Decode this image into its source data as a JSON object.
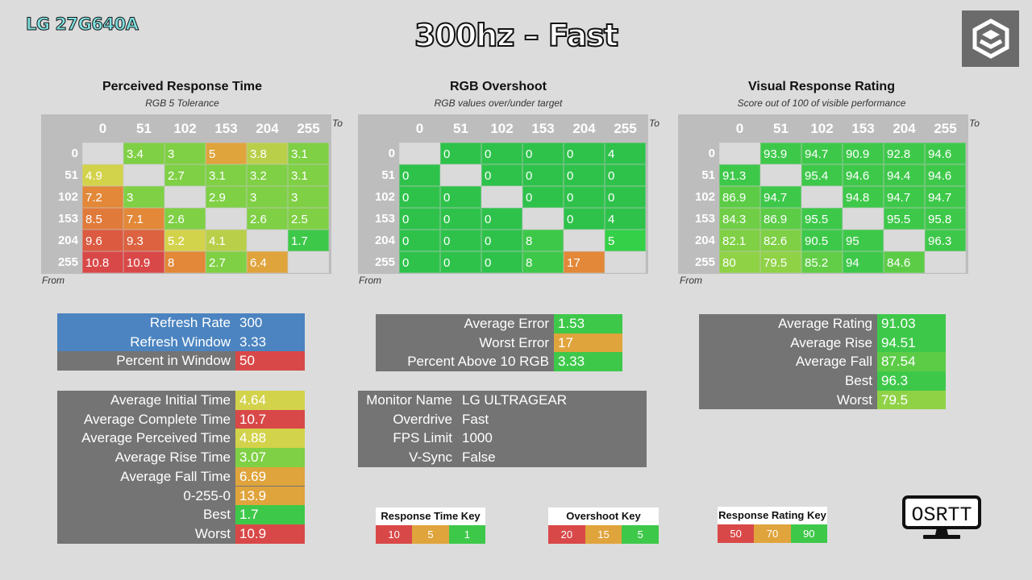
{
  "header": {
    "model": "LG 27G640A",
    "title": "300hz – Fast"
  },
  "colors": {
    "blue": "#4b84c0",
    "grey": "#747474",
    "green_dark": "#2ec24b",
    "green": "#3ec84a",
    "green_light": "#7fd045",
    "yellow": "#d3d24b",
    "orange": "#e0a43c",
    "orange_dark": "#e28838",
    "red": "#d94848",
    "diag": "#dadada"
  },
  "labels": {
    "to": "To",
    "from": "From"
  },
  "chart_data": [
    {
      "type": "heatmap",
      "title": "Perceived Response Time",
      "subtitle": "RGB 5 Tolerance",
      "levels": [
        "0",
        "51",
        "102",
        "153",
        "204",
        "255"
      ],
      "values": [
        [
          null,
          "3.4",
          "3",
          "5",
          "3.8",
          "3.1"
        ],
        [
          "4.9",
          null,
          "2.7",
          "3.1",
          "3.2",
          "3.1"
        ],
        [
          "7.2",
          "3",
          null,
          "2.9",
          "3",
          "3"
        ],
        [
          "8.5",
          "7.1",
          "2.6",
          null,
          "2.6",
          "2.5"
        ],
        [
          "9.6",
          "9.3",
          "5.2",
          "4.1",
          null,
          "1.7"
        ],
        [
          "10.8",
          "10.9",
          "8",
          "2.7",
          "6.4",
          null
        ]
      ],
      "cell_colors": [
        [
          null,
          "#7fd045",
          "#7fd045",
          "#e0a43c",
          "#b9cf4a",
          "#7fd045"
        ],
        [
          "#d3d24b",
          null,
          "#7fd045",
          "#7fd045",
          "#7fd045",
          "#7fd045"
        ],
        [
          "#e28838",
          "#7fd045",
          null,
          "#7fd045",
          "#7fd045",
          "#7fd045"
        ],
        [
          "#e07a3a",
          "#e28838",
          "#7fd045",
          null,
          "#7fd045",
          "#7fd045"
        ],
        [
          "#db5a40",
          "#dc6240",
          "#d3d24b",
          "#b9cf4a",
          null,
          "#3ec84a"
        ],
        [
          "#d94848",
          "#d94848",
          "#e28838",
          "#7fd045",
          "#e0a43c",
          null
        ]
      ]
    },
    {
      "type": "heatmap",
      "title": "RGB Overshoot",
      "subtitle": "RGB values over/under target",
      "levels": [
        "0",
        "51",
        "102",
        "153",
        "204",
        "255"
      ],
      "values": [
        [
          null,
          "0",
          "0",
          "0",
          "0",
          "4"
        ],
        [
          "0",
          null,
          "0",
          "0",
          "0",
          "0"
        ],
        [
          "0",
          "0",
          null,
          "0",
          "0",
          "0"
        ],
        [
          "0",
          "0",
          "0",
          null,
          "0",
          "4"
        ],
        [
          "0",
          "0",
          "0",
          "8",
          null,
          "5"
        ],
        [
          "0",
          "0",
          "0",
          "8",
          "17",
          null
        ]
      ],
      "cell_colors": [
        [
          null,
          "#2ec24b",
          "#2ec24b",
          "#2ec24b",
          "#2ec24b",
          "#2ec24b"
        ],
        [
          "#2ec24b",
          null,
          "#2ec24b",
          "#2ec24b",
          "#2ec24b",
          "#2ec24b"
        ],
        [
          "#2ec24b",
          "#2ec24b",
          null,
          "#2ec24b",
          "#2ec24b",
          "#2ec24b"
        ],
        [
          "#2ec24b",
          "#2ec24b",
          "#2ec24b",
          null,
          "#2ec24b",
          "#2ec24b"
        ],
        [
          "#2ec24b",
          "#2ec24b",
          "#2ec24b",
          "#3ec84a",
          null,
          "#34d048"
        ],
        [
          "#2ec24b",
          "#2ec24b",
          "#2ec24b",
          "#3ec84a",
          "#e28838",
          null
        ]
      ]
    },
    {
      "type": "heatmap",
      "title": "Visual Response Rating",
      "subtitle": "Score out of 100 of visible performance",
      "levels": [
        "0",
        "51",
        "102",
        "153",
        "204",
        "255"
      ],
      "values": [
        [
          null,
          "93.9",
          "94.7",
          "90.9",
          "92.8",
          "94.6"
        ],
        [
          "91.3",
          null,
          "95.4",
          "94.6",
          "94.4",
          "94.6"
        ],
        [
          "86.9",
          "94.7",
          null,
          "94.8",
          "94.7",
          "94.7"
        ],
        [
          "84.3",
          "86.9",
          "95.5",
          null,
          "95.5",
          "95.8"
        ],
        [
          "82.1",
          "82.6",
          "90.5",
          "95",
          null,
          "96.3"
        ],
        [
          "80",
          "79.5",
          "85.2",
          "94",
          "84.6",
          null
        ]
      ],
      "cell_colors": [
        [
          null,
          "#3ec84a",
          "#3ec84a",
          "#3ec84a",
          "#3ec84a",
          "#3ec84a"
        ],
        [
          "#3ec84a",
          null,
          "#3ec84a",
          "#3ec84a",
          "#3ec84a",
          "#3ec84a"
        ],
        [
          "#5ccc47",
          "#3ec84a",
          null,
          "#3ec84a",
          "#3ec84a",
          "#3ec84a"
        ],
        [
          "#6fce46",
          "#5ccc47",
          "#3ec84a",
          null,
          "#3ec84a",
          "#3ec84a"
        ],
        [
          "#7fd045",
          "#7fd045",
          "#3ec84a",
          "#3ec84a",
          null,
          "#3ec84a"
        ],
        [
          "#8fd246",
          "#8fd246",
          "#62cd46",
          "#3ec84a",
          "#5ccc47",
          null
        ]
      ]
    }
  ],
  "refresh_panel": [
    {
      "label": "Refresh Rate",
      "value": "300",
      "label_color": "#4b84c0",
      "value_color": "#4b84c0"
    },
    {
      "label": "Refresh Window",
      "value": "3.33",
      "label_color": "#4b84c0",
      "value_color": "#4b84c0"
    },
    {
      "label": "Percent in Window",
      "value": "50",
      "label_color": "#747474",
      "value_color": "#d94848"
    }
  ],
  "time_panel": [
    {
      "label": "Average Initial Time",
      "value": "4.64",
      "value_color": "#d3d24b"
    },
    {
      "label": "Average Complete Time",
      "value": "10.7",
      "value_color": "#d94848"
    },
    {
      "label": "Average Perceived Time",
      "value": "4.88",
      "value_color": "#d3d24b"
    },
    {
      "label": "Average Rise Time",
      "value": "3.07",
      "value_color": "#7fd045"
    },
    {
      "label": "Average Fall Time",
      "value": "6.69",
      "value_color": "#e0a43c"
    },
    {
      "label": "0-255-0",
      "value": "13.9",
      "value_color": "#e0a43c"
    },
    {
      "label": "Best",
      "value": "1.7",
      "value_color": "#3ec84a"
    },
    {
      "label": "Worst",
      "value": "10.9",
      "value_color": "#d94848"
    }
  ],
  "overshoot_panel": [
    {
      "label": "Average Error",
      "value": "1.53",
      "value_color": "#3ec84a"
    },
    {
      "label": "Worst Error",
      "value": "17",
      "value_color": "#e0a43c"
    },
    {
      "label": "Percent Above 10 RGB",
      "value": "3.33",
      "value_color": "#3ec84a"
    }
  ],
  "monitor_info": [
    {
      "label": "Monitor Name",
      "value": "LG ULTRAGEAR"
    },
    {
      "label": "Overdrive",
      "value": "Fast"
    },
    {
      "label": "FPS Limit",
      "value": "1000"
    },
    {
      "label": "V-Sync",
      "value": "False"
    }
  ],
  "rating_panel": [
    {
      "label": "Average Rating",
      "value": "91.03",
      "value_color": "#3ec84a"
    },
    {
      "label": "Average Rise",
      "value": "94.51",
      "value_color": "#3ec84a"
    },
    {
      "label": "Average Fall",
      "value": "87.54",
      "value_color": "#5ccc47"
    },
    {
      "label": "Best",
      "value": "96.3",
      "value_color": "#3ec84a"
    },
    {
      "label": "Worst",
      "value": "79.5",
      "value_color": "#8fd246"
    }
  ],
  "keys": [
    {
      "title": "Response Time Key",
      "items": [
        {
          "v": "10",
          "c": "#d94848"
        },
        {
          "v": "5",
          "c": "#e0a43c"
        },
        {
          "v": "1",
          "c": "#3ec84a"
        }
      ]
    },
    {
      "title": "Overshoot Key",
      "items": [
        {
          "v": "20",
          "c": "#d94848"
        },
        {
          "v": "15",
          "c": "#e0a43c"
        },
        {
          "v": "5",
          "c": "#3ec84a"
        }
      ]
    },
    {
      "title": "Response Rating Key",
      "items": [
        {
          "v": "50",
          "c": "#d94848"
        },
        {
          "v": "70",
          "c": "#e0a43c"
        },
        {
          "v": "90",
          "c": "#3ec84a"
        }
      ]
    }
  ],
  "brand": {
    "osrtt": "OSRTT"
  }
}
